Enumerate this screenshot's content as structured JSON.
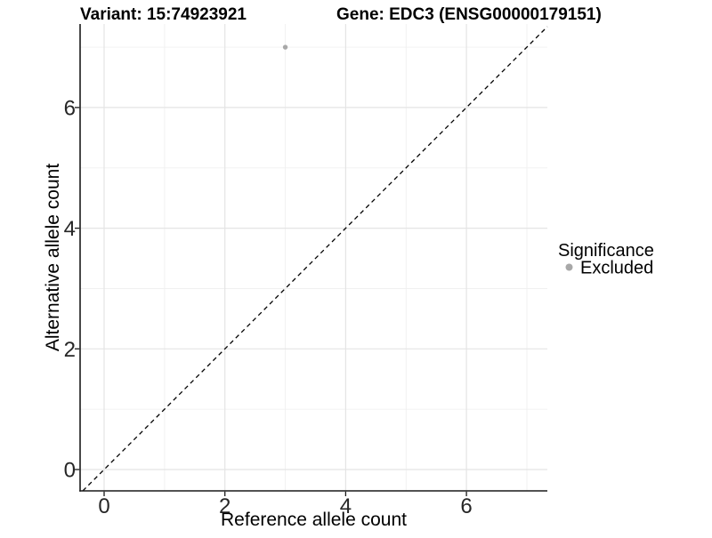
{
  "header": {
    "variant_title": "Variant: 15:74923921",
    "gene_title": "Gene: EDC3 (ENSG00000179151)"
  },
  "axes": {
    "x": {
      "label": "Reference allele count",
      "ticks": [
        "0",
        "2",
        "4",
        "6"
      ]
    },
    "y": {
      "label": "Alternative allele count",
      "ticks": [
        "0",
        "2",
        "4",
        "6"
      ]
    }
  },
  "legend": {
    "title": "Significance",
    "items": [
      {
        "label": "Excluded",
        "color": "#a8a8a8"
      }
    ]
  },
  "chart_data": {
    "type": "scatter",
    "title": "Variant: 15:74923921    Gene: EDC3 (ENSG00000179151)",
    "xlabel": "Reference allele count",
    "ylabel": "Alternative allele count",
    "xlim": [
      -0.35,
      7.35
    ],
    "ylim": [
      -0.35,
      7.35
    ],
    "x_breaks": [
      0,
      2,
      4,
      6
    ],
    "y_breaks": [
      0,
      2,
      4,
      6
    ],
    "minor_breaks": [
      1,
      3,
      5,
      7
    ],
    "grid": true,
    "legend_position": "right",
    "legend_title": "Significance",
    "series": [
      {
        "name": "Excluded",
        "color": "#a8a8a8",
        "point_radius": 2.7,
        "points": [
          {
            "x": 3,
            "y": 7
          }
        ]
      }
    ],
    "reference_line": {
      "style": "dashed",
      "slope": 1,
      "intercept": 0,
      "color": "#000000"
    }
  },
  "colors": {
    "major_grid": "#e4e4e4",
    "minor_grid": "#f0f0f0",
    "axis_line": "#1a1a1a"
  }
}
